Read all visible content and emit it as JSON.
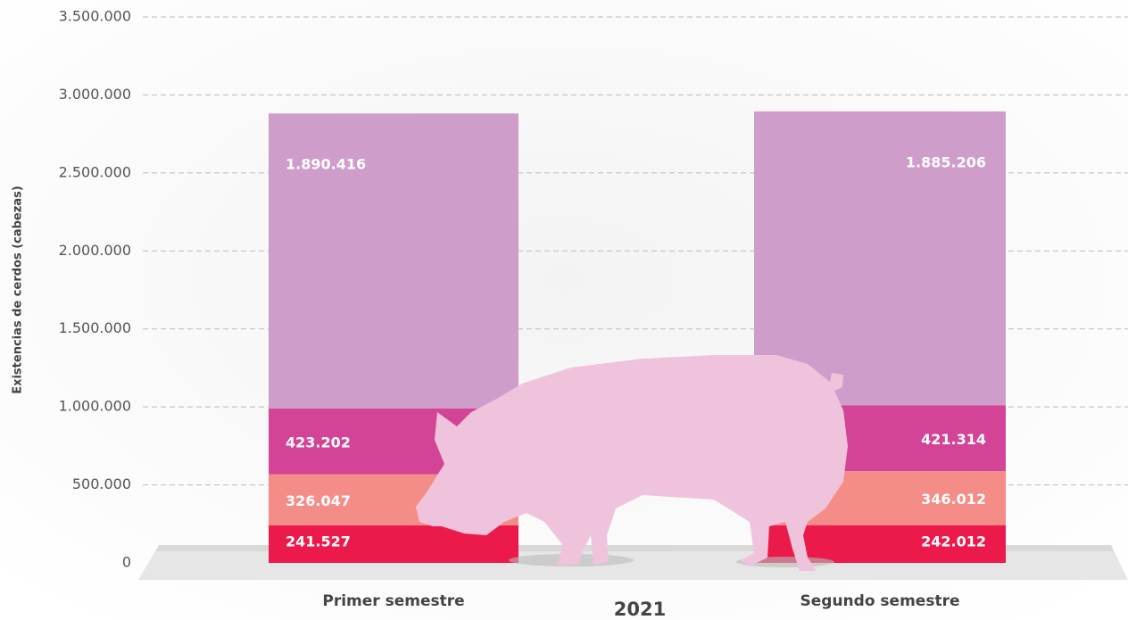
{
  "chart_data": {
    "type": "bar",
    "stacked": true,
    "y_label": "Existencias de cerdos (cabezas)",
    "x_label": "2021",
    "categories": [
      "Primer semestre",
      "Segundo semestre"
    ],
    "series": [
      {
        "color": "#ec1a4b",
        "values": [
          241527,
          242012
        ],
        "value_labels": [
          "241.527",
          "242.012"
        ]
      },
      {
        "color": "#f48c87",
        "values": [
          326047,
          346012
        ],
        "value_labels": [
          "326.047",
          "346.012"
        ]
      },
      {
        "color": "#d44496",
        "values": [
          423202,
          421314
        ],
        "value_labels": [
          "423.202",
          "421.314"
        ]
      },
      {
        "color": "#ce9dca",
        "values": [
          1890416,
          1885206
        ],
        "value_labels": [
          "1.890.416",
          "1.885.206"
        ]
      }
    ],
    "ylim": [
      0,
      3500000
    ],
    "yticks": [
      0,
      {
        "value": 500000,
        "label": "500.000"
      },
      {
        "value": 1000000,
        "label": "1.000.000"
      },
      {
        "value": 1500000,
        "label": "1.500.000"
      },
      {
        "value": 2000000,
        "label": "2.000.000"
      },
      {
        "value": 2500000,
        "label": "2.500.000"
      },
      {
        "value": 3000000,
        "label": "3.000.000"
      },
      {
        "value": 3500000,
        "label": "3.500.000"
      }
    ],
    "grid": true
  }
}
